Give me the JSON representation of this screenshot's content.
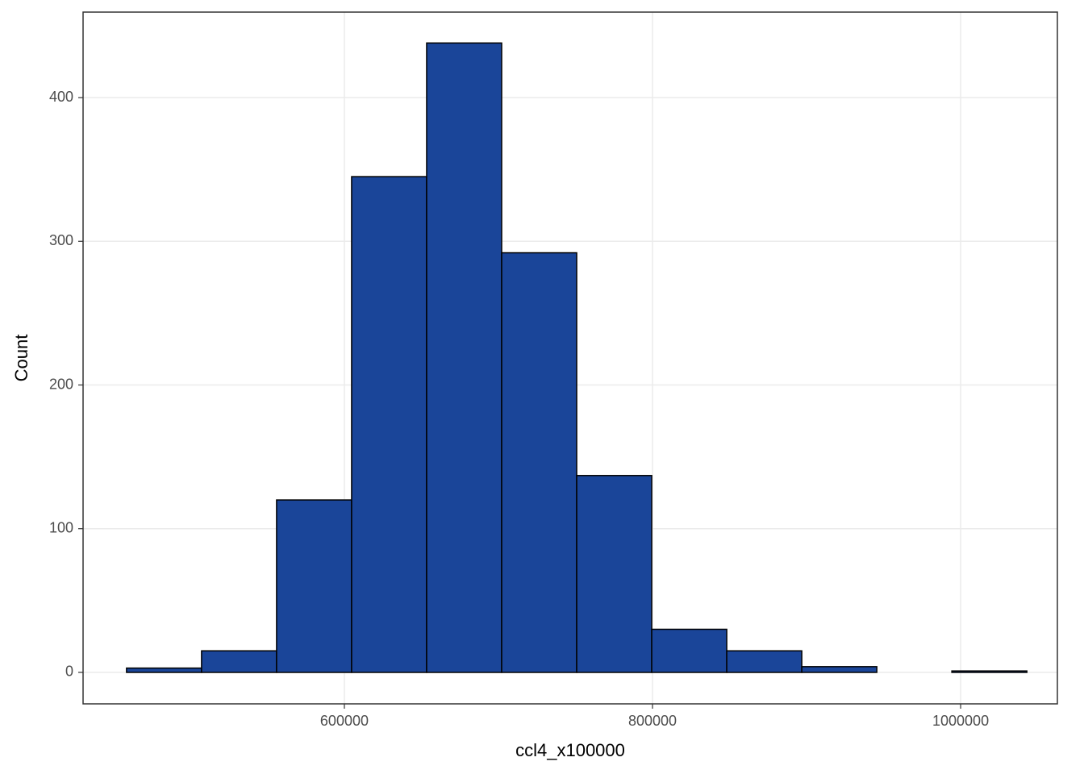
{
  "chart_data": {
    "type": "histogram",
    "x_label": "ccl4_x100000",
    "y_label": "Count",
    "bins": [
      458600,
      507300,
      556000,
      604700,
      653400,
      702100,
      750800,
      799500,
      848200,
      896900,
      945600,
      994300,
      1043000
    ],
    "values": [
      3,
      15,
      120,
      345,
      438,
      292,
      137,
      30,
      15,
      4,
      0,
      1
    ],
    "color": "#1a4599",
    "edge_color": "#000000",
    "xlim": [
      430400,
      1062800
    ],
    "xticks": [
      600000,
      800000,
      1000000
    ],
    "ylim": [
      -21.9,
      459.5
    ],
    "yticks": [
      0,
      100,
      200,
      300,
      400
    ],
    "grid": true
  }
}
